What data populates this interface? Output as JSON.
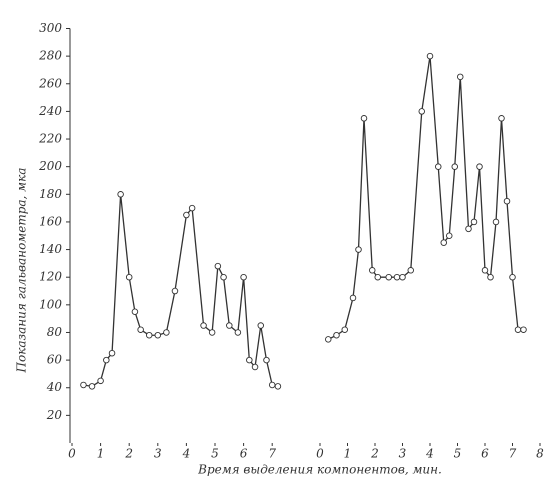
{
  "chart_data": [
    {
      "type": "line",
      "ylabel": "Показания гальванометра, мка",
      "x": [
        0.4,
        0.7,
        1.0,
        1.2,
        1.4,
        1.7,
        2.0,
        2.2,
        2.4,
        2.7,
        3.0,
        3.3,
        3.6,
        4.0,
        4.2,
        4.6,
        4.9,
        5.1,
        5.3,
        5.5,
        5.8,
        6.0,
        6.2,
        6.4,
        6.6,
        6.8,
        7.0,
        7.2
      ],
      "series": [
        {
          "color": "#333333",
          "values": [
            42,
            41,
            45,
            60,
            65,
            180,
            120,
            95,
            82,
            78,
            78,
            80,
            110,
            165,
            170,
            85,
            80,
            128,
            120,
            85,
            80,
            120,
            60,
            55,
            85,
            60,
            42,
            41
          ]
        }
      ],
      "xlim": [
        0,
        7.5
      ],
      "xticks": [
        0,
        1,
        2,
        3,
        4,
        5,
        6,
        7
      ],
      "ylim": [
        0,
        300
      ],
      "yticks": [
        20,
        40,
        60,
        80,
        100,
        120,
        140,
        160,
        180,
        200,
        220,
        240,
        260,
        280,
        300
      ]
    },
    {
      "type": "line",
      "xlabel": "Время выделения компонентов, мин.",
      "x": [
        0.3,
        0.6,
        0.9,
        1.2,
        1.4,
        1.6,
        1.9,
        2.1,
        2.5,
        2.8,
        3.0,
        3.3,
        3.7,
        4.0,
        4.3,
        4.5,
        4.7,
        4.9,
        5.1,
        5.4,
        5.6,
        5.8,
        6.0,
        6.2,
        6.4,
        6.6,
        6.8,
        7.0,
        7.2,
        7.4
      ],
      "series": [
        {
          "color": "#333333",
          "values": [
            75,
            78,
            82,
            105,
            140,
            235,
            125,
            120,
            120,
            120,
            120,
            125,
            240,
            280,
            200,
            145,
            150,
            200,
            265,
            155,
            160,
            200,
            125,
            120,
            160,
            235,
            175,
            120,
            82,
            82
          ]
        }
      ],
      "xlim": [
        0,
        8
      ],
      "xticks": [
        0,
        1,
        2,
        3,
        4,
        5,
        6,
        7,
        8
      ],
      "ylim": [
        0,
        300
      ]
    }
  ]
}
